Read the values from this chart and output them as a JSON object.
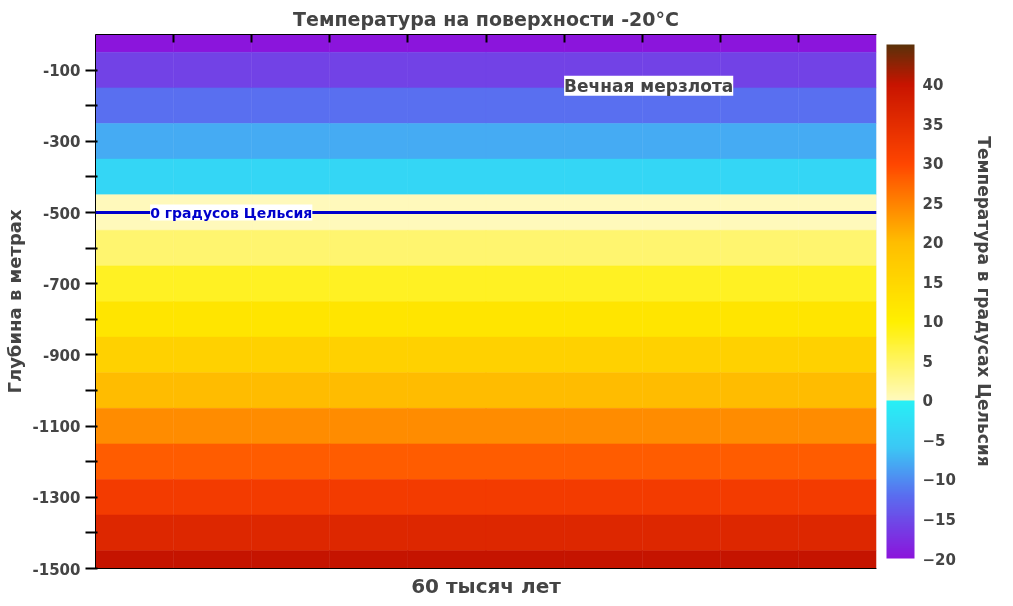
{
  "chart_data": {
    "type": "heatmap",
    "title": "Температура на поверхности -20°C",
    "xlabel": "60 тысяч лет",
    "ylabel": "Глубина в метрах",
    "clabel": "Температура в градусах Цельсия",
    "categories": [
      null,
      null,
      null,
      null,
      null,
      null,
      null,
      null,
      null,
      null
    ],
    "y_categories": [
      null,
      "-100",
      null,
      "-300",
      null,
      "-500",
      null,
      "-700",
      null,
      "-900",
      null,
      "-1100",
      null,
      "-1300",
      null,
      "-1500"
    ],
    "cells": [
      [
        -20,
        -20,
        -20,
        -20,
        -20,
        -20,
        -20,
        -20,
        -20,
        -20
      ],
      [
        -16,
        -16,
        -16,
        -16,
        -16,
        -16,
        -16,
        -16,
        -16,
        -16
      ],
      [
        -12,
        -12,
        -12,
        -12,
        -12,
        -12,
        -12,
        -12,
        -12,
        -12
      ],
      [
        -8,
        -8,
        -8,
        -8,
        -8,
        -8,
        -8,
        -8,
        -8,
        -8
      ],
      [
        -4,
        -4,
        -4,
        -4,
        -4,
        -4,
        -4,
        -4,
        -4,
        -4
      ],
      [
        0,
        0,
        0,
        0,
        0,
        0,
        0,
        0,
        0,
        0
      ],
      [
        4,
        4,
        4,
        4,
        4,
        4,
        4,
        4,
        4,
        4
      ],
      [
        8,
        8,
        8,
        8,
        8,
        8,
        8,
        8,
        8,
        8
      ],
      [
        12,
        12,
        12,
        12,
        12,
        12,
        12,
        12,
        12,
        12
      ],
      [
        16,
        16,
        16,
        16,
        16,
        16,
        16,
        16,
        16,
        16
      ],
      [
        20,
        20,
        20,
        20,
        20,
        20,
        20,
        20,
        20,
        20
      ],
      [
        24,
        24,
        24,
        24,
        24,
        24,
        24,
        24,
        24,
        24
      ],
      [
        28,
        28,
        28,
        28,
        28,
        28,
        28,
        28,
        28,
        28
      ],
      [
        32,
        32,
        32,
        32,
        32,
        32,
        32,
        32,
        32,
        32
      ],
      [
        36,
        36,
        36,
        36,
        36,
        36,
        36,
        36,
        36,
        36
      ],
      [
        40,
        40,
        40,
        40,
        40,
        40,
        40,
        40,
        40,
        40
      ]
    ],
    "clim": [
      -20,
      45
    ],
    "cticks": [
      -20,
      -15,
      -10,
      -5,
      0,
      5,
      10,
      15,
      20,
      25,
      30,
      35,
      40
    ],
    "annotations": [
      "Вечная мерзлота"
    ],
    "ref_lines": [
      {
        "axis": "y",
        "value": "-500",
        "label": "0 градусов Цельсия",
        "color": "#0000cc"
      }
    ],
    "tick_labels": "y"
  }
}
